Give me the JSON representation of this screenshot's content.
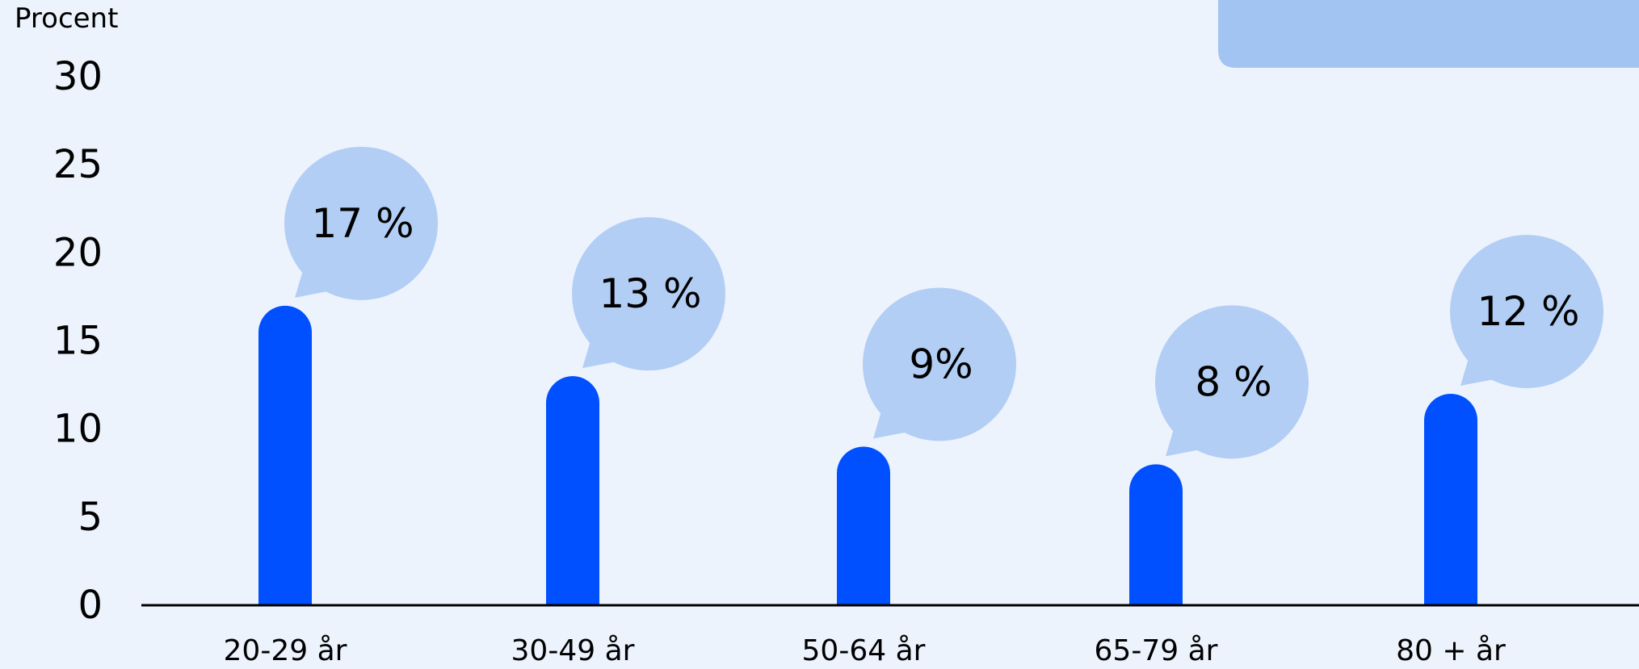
{
  "chart_data": {
    "type": "bar",
    "ylabel": "Procent",
    "xlabel": "",
    "title": "",
    "ylim": [
      0,
      30
    ],
    "yticks": [
      0,
      5,
      10,
      15,
      20,
      25,
      30
    ],
    "categories": [
      "20-29 år",
      "30-49 år",
      "50-64 år",
      "65-79 år",
      "80 + år"
    ],
    "values": [
      17,
      13,
      9,
      8,
      12
    ],
    "data_labels": [
      "17 %",
      "13 %",
      "9%",
      "8 %",
      "12 %"
    ],
    "grid": false,
    "legend": "none"
  },
  "colors": {
    "background": "#EDF3FD",
    "bar": "#0050FF",
    "bubble": "#B3CEF5",
    "corner_panel": "#A2C4F2",
    "axis": "#000000"
  }
}
